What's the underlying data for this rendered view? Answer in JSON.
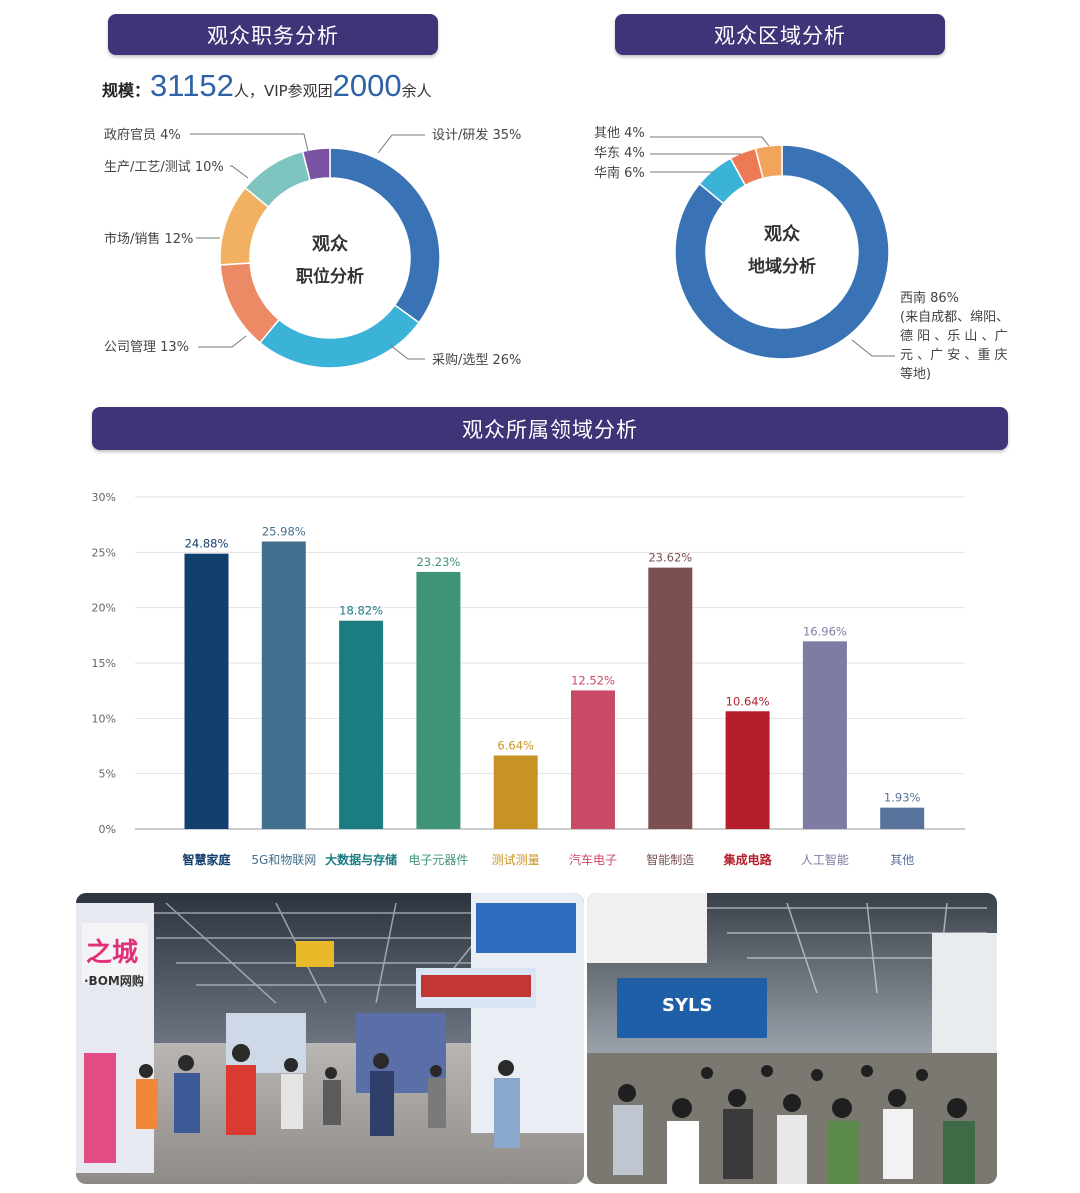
{
  "banners": {
    "role": "观众职务分析",
    "region": "观众区域分析",
    "domain": "观众所属领域分析"
  },
  "scale": {
    "label": "规模：",
    "visitors": "31152",
    "visitors_unit": "人，",
    "vip_label": "VIP参观团",
    "vip": "2000",
    "vip_unit": "余人"
  },
  "chart_data": [
    {
      "type": "pie",
      "center_label": [
        "观众",
        "职位分析"
      ],
      "slices": [
        {
          "label": "设计/研发 35%",
          "value": 35,
          "color": "#3a72b6"
        },
        {
          "label": "采购/选型 26%",
          "value": 26,
          "color": "#3bb3d8"
        },
        {
          "label": "公司管理 13%",
          "value": 13,
          "color": "#eb8a64"
        },
        {
          "label": "市场/销售 12%",
          "value": 12,
          "color": "#f2b062"
        },
        {
          "label": "生产/工艺/测试 10%",
          "value": 10,
          "color": "#7ec4bf"
        },
        {
          "label": "政府官员 4%",
          "value": 4,
          "color": "#7a53a2"
        }
      ]
    },
    {
      "type": "pie",
      "center_label": [
        "观众",
        "地域分析"
      ],
      "slices": [
        {
          "label": "西南 86%",
          "value": 86,
          "color": "#3a72b6",
          "note": [
            "(来自成都、绵阳、",
            "德 阳 、乐 山 、广",
            "元 、广 安 、重 庆",
            "等地)"
          ]
        },
        {
          "label": "华南 6%",
          "value": 6,
          "color": "#3bb3d8"
        },
        {
          "label": "华东 4%",
          "value": 4,
          "color": "#eb7a55"
        },
        {
          "label": "其他 4%",
          "value": 4,
          "color": "#f2a55a"
        }
      ]
    },
    {
      "type": "bar",
      "categories": [
        "智慧家庭",
        "5G和物联网",
        "大数据与存储",
        "电子元器件",
        "测试测量",
        "汽车电子",
        "智能制造",
        "集成电路",
        "人工智能",
        "其他"
      ],
      "values": [
        24.88,
        25.98,
        18.82,
        23.23,
        6.64,
        12.52,
        23.62,
        10.64,
        16.96,
        1.93
      ],
      "value_labels": [
        "24.88%",
        "25.98%",
        "18.82%",
        "23.23%",
        "6.64%",
        "12.52%",
        "23.62%",
        "10.64%",
        "16.96%",
        "1.93%"
      ],
      "colors": [
        "#123f6e",
        "#436f8e",
        "#1b7c82",
        "#3f9476",
        "#c89324",
        "#c94a64",
        "#7b5050",
        "#b41f2a",
        "#7e7ca4",
        "#58739c"
      ],
      "yticks": [
        "0%",
        "5%",
        "10%",
        "15%",
        "20%",
        "25%",
        "30%"
      ],
      "ylim": [
        0,
        30
      ],
      "grid": true
    }
  ],
  "photos": {
    "left": {
      "sign_text": "之城",
      "sub_text": "·BOM网购"
    },
    "right": {
      "sign_text": "SYLS"
    }
  }
}
